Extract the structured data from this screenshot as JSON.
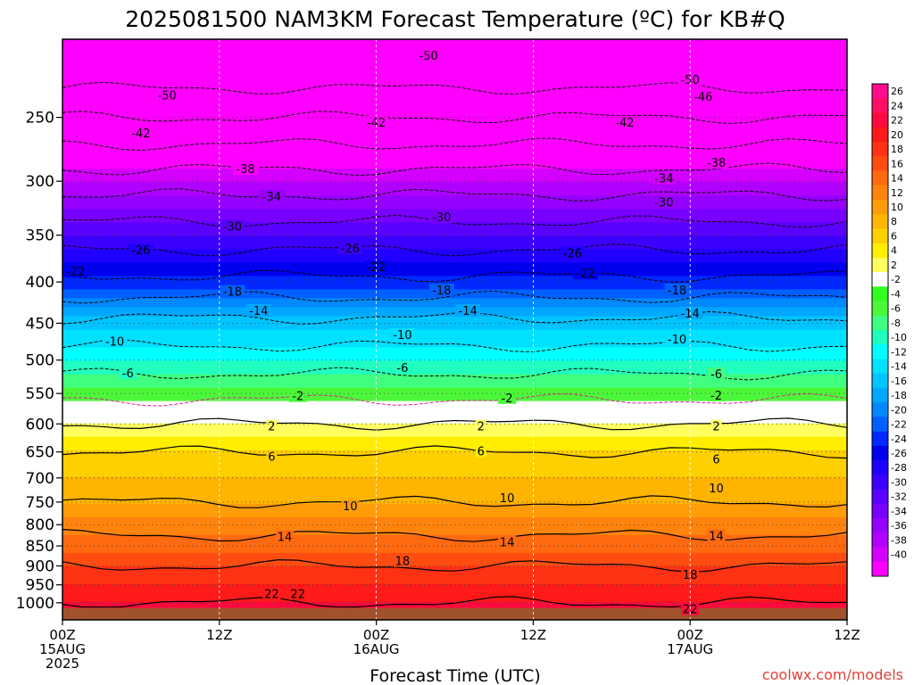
{
  "chart_data": {
    "type": "heatmap",
    "title": "2025081500 NAM3KM Forecast Temperature (ºC) for KB#Q",
    "xlabel": "Forecast Time (UTC)",
    "ylabel": "",
    "x_ticks": [
      {
        "hour": 0,
        "lines": [
          "00Z",
          "15AUG",
          "2025"
        ]
      },
      {
        "hour": 12,
        "lines": [
          "12Z"
        ]
      },
      {
        "hour": 24,
        "lines": [
          "00Z",
          "16AUG"
        ]
      },
      {
        "hour": 36,
        "lines": [
          "12Z"
        ]
      },
      {
        "hour": 48,
        "lines": [
          "00Z",
          "17AUG"
        ]
      },
      {
        "hour": 60,
        "lines": [
          "12Z"
        ]
      }
    ],
    "xlim": [
      0,
      60
    ],
    "y_ticks": [
      250,
      300,
      350,
      400,
      450,
      500,
      550,
      600,
      650,
      700,
      750,
      800,
      850,
      900,
      950,
      1000
    ],
    "ylim": [
      1050,
      200
    ],
    "y_scale": "log-pressure",
    "colorbar": {
      "labels": [
        "26",
        "24",
        "22",
        "20",
        "18",
        "16",
        "14",
        "12",
        "10",
        "8",
        "6",
        "4",
        "2",
        "-2",
        "-4",
        "-6",
        "-8",
        "-10",
        "-12",
        "-14",
        "-16",
        "-18",
        "-20",
        "-22",
        "-24",
        "-26",
        "-28",
        "-30",
        "-32",
        "-34",
        "-36",
        "-38",
        "-40"
      ],
      "colors": [
        "#ff0d8c",
        "#ff1065",
        "#ff0a3e",
        "#ff1a1a",
        "#ff3214",
        "#ff4d12",
        "#ff6a10",
        "#ff840d",
        "#ff9c08",
        "#ffb400",
        "#ffd000",
        "#ffee00",
        "#ffff60",
        "#ffffff",
        "#30ff20",
        "#4cf73a",
        "#40ff80",
        "#20ffc0",
        "#00ffff",
        "#00e0ff",
        "#00c4ff",
        "#00a8ff",
        "#0088ff",
        "#0060ff",
        "#0028ff",
        "#0000ee",
        "#2000ff",
        "#3c00ff",
        "#5a00ff",
        "#7800ff",
        "#9600ff",
        "#b000ff",
        "#d400ff",
        "#ff00ff"
      ]
    },
    "contours": [
      {
        "t": -50,
        "label_positions": [
          [
            8,
            235
          ],
          [
            28,
            210
          ],
          [
            48,
            225
          ]
        ]
      },
      {
        "t": -46,
        "label_positions": [
          [
            49,
            236
          ]
        ]
      },
      {
        "t": -42,
        "label_positions": [
          [
            6,
            262
          ],
          [
            24,
            254
          ],
          [
            43,
            254
          ]
        ]
      },
      {
        "t": -38,
        "label_positions": [
          [
            14,
            290
          ],
          [
            50,
            285
          ]
        ]
      },
      {
        "t": -34,
        "label_positions": [
          [
            16,
            314
          ],
          [
            46,
            298
          ]
        ]
      },
      {
        "t": -30,
        "label_positions": [
          [
            13,
            342
          ],
          [
            29,
            333
          ],
          [
            46,
            319
          ]
        ]
      },
      {
        "t": -26,
        "label_positions": [
          [
            6,
            366
          ],
          [
            22,
            364
          ],
          [
            39,
            369
          ]
        ]
      },
      {
        "t": -22,
        "label_positions": [
          [
            1,
            389
          ],
          [
            24,
            384
          ],
          [
            40,
            391
          ]
        ]
      },
      {
        "t": -18,
        "label_positions": [
          [
            13,
            412
          ],
          [
            29,
            410
          ],
          [
            47,
            410
          ]
        ]
      },
      {
        "t": -14,
        "label_positions": [
          [
            15,
            435
          ],
          [
            31,
            435
          ],
          [
            48,
            438
          ]
        ]
      },
      {
        "t": -10,
        "label_positions": [
          [
            4,
            475
          ],
          [
            26,
            466
          ],
          [
            47,
            472
          ]
        ]
      },
      {
        "t": -6,
        "label_positions": [
          [
            5,
            520
          ],
          [
            26,
            512
          ],
          [
            50,
            521
          ]
        ]
      },
      {
        "t": -2,
        "label_positions": [
          [
            18,
            555
          ],
          [
            34,
            558
          ],
          [
            50,
            554
          ]
        ]
      },
      {
        "t": 2,
        "label_positions": [
          [
            16,
            605
          ],
          [
            32,
            605
          ],
          [
            50,
            605
          ]
        ]
      },
      {
        "t": 6,
        "label_positions": [
          [
            16,
            660
          ],
          [
            32,
            650
          ],
          [
            50,
            665
          ]
        ]
      },
      {
        "t": 10,
        "label_positions": [
          [
            22,
            760
          ],
          [
            34,
            743
          ],
          [
            50,
            722
          ]
        ]
      },
      {
        "t": 14,
        "label_positions": [
          [
            17,
            830
          ],
          [
            34,
            842
          ],
          [
            50,
            827
          ]
        ]
      },
      {
        "t": 18,
        "label_positions": [
          [
            26,
            889
          ],
          [
            48,
            925
          ]
        ]
      },
      {
        "t": 22,
        "label_positions": [
          [
            16,
            977
          ],
          [
            18,
            977
          ],
          [
            48,
            1020
          ]
        ]
      }
    ],
    "ground": {
      "color": "#a0522d",
      "pressure_top": 1015
    },
    "credit": "coolwx.com/models"
  }
}
